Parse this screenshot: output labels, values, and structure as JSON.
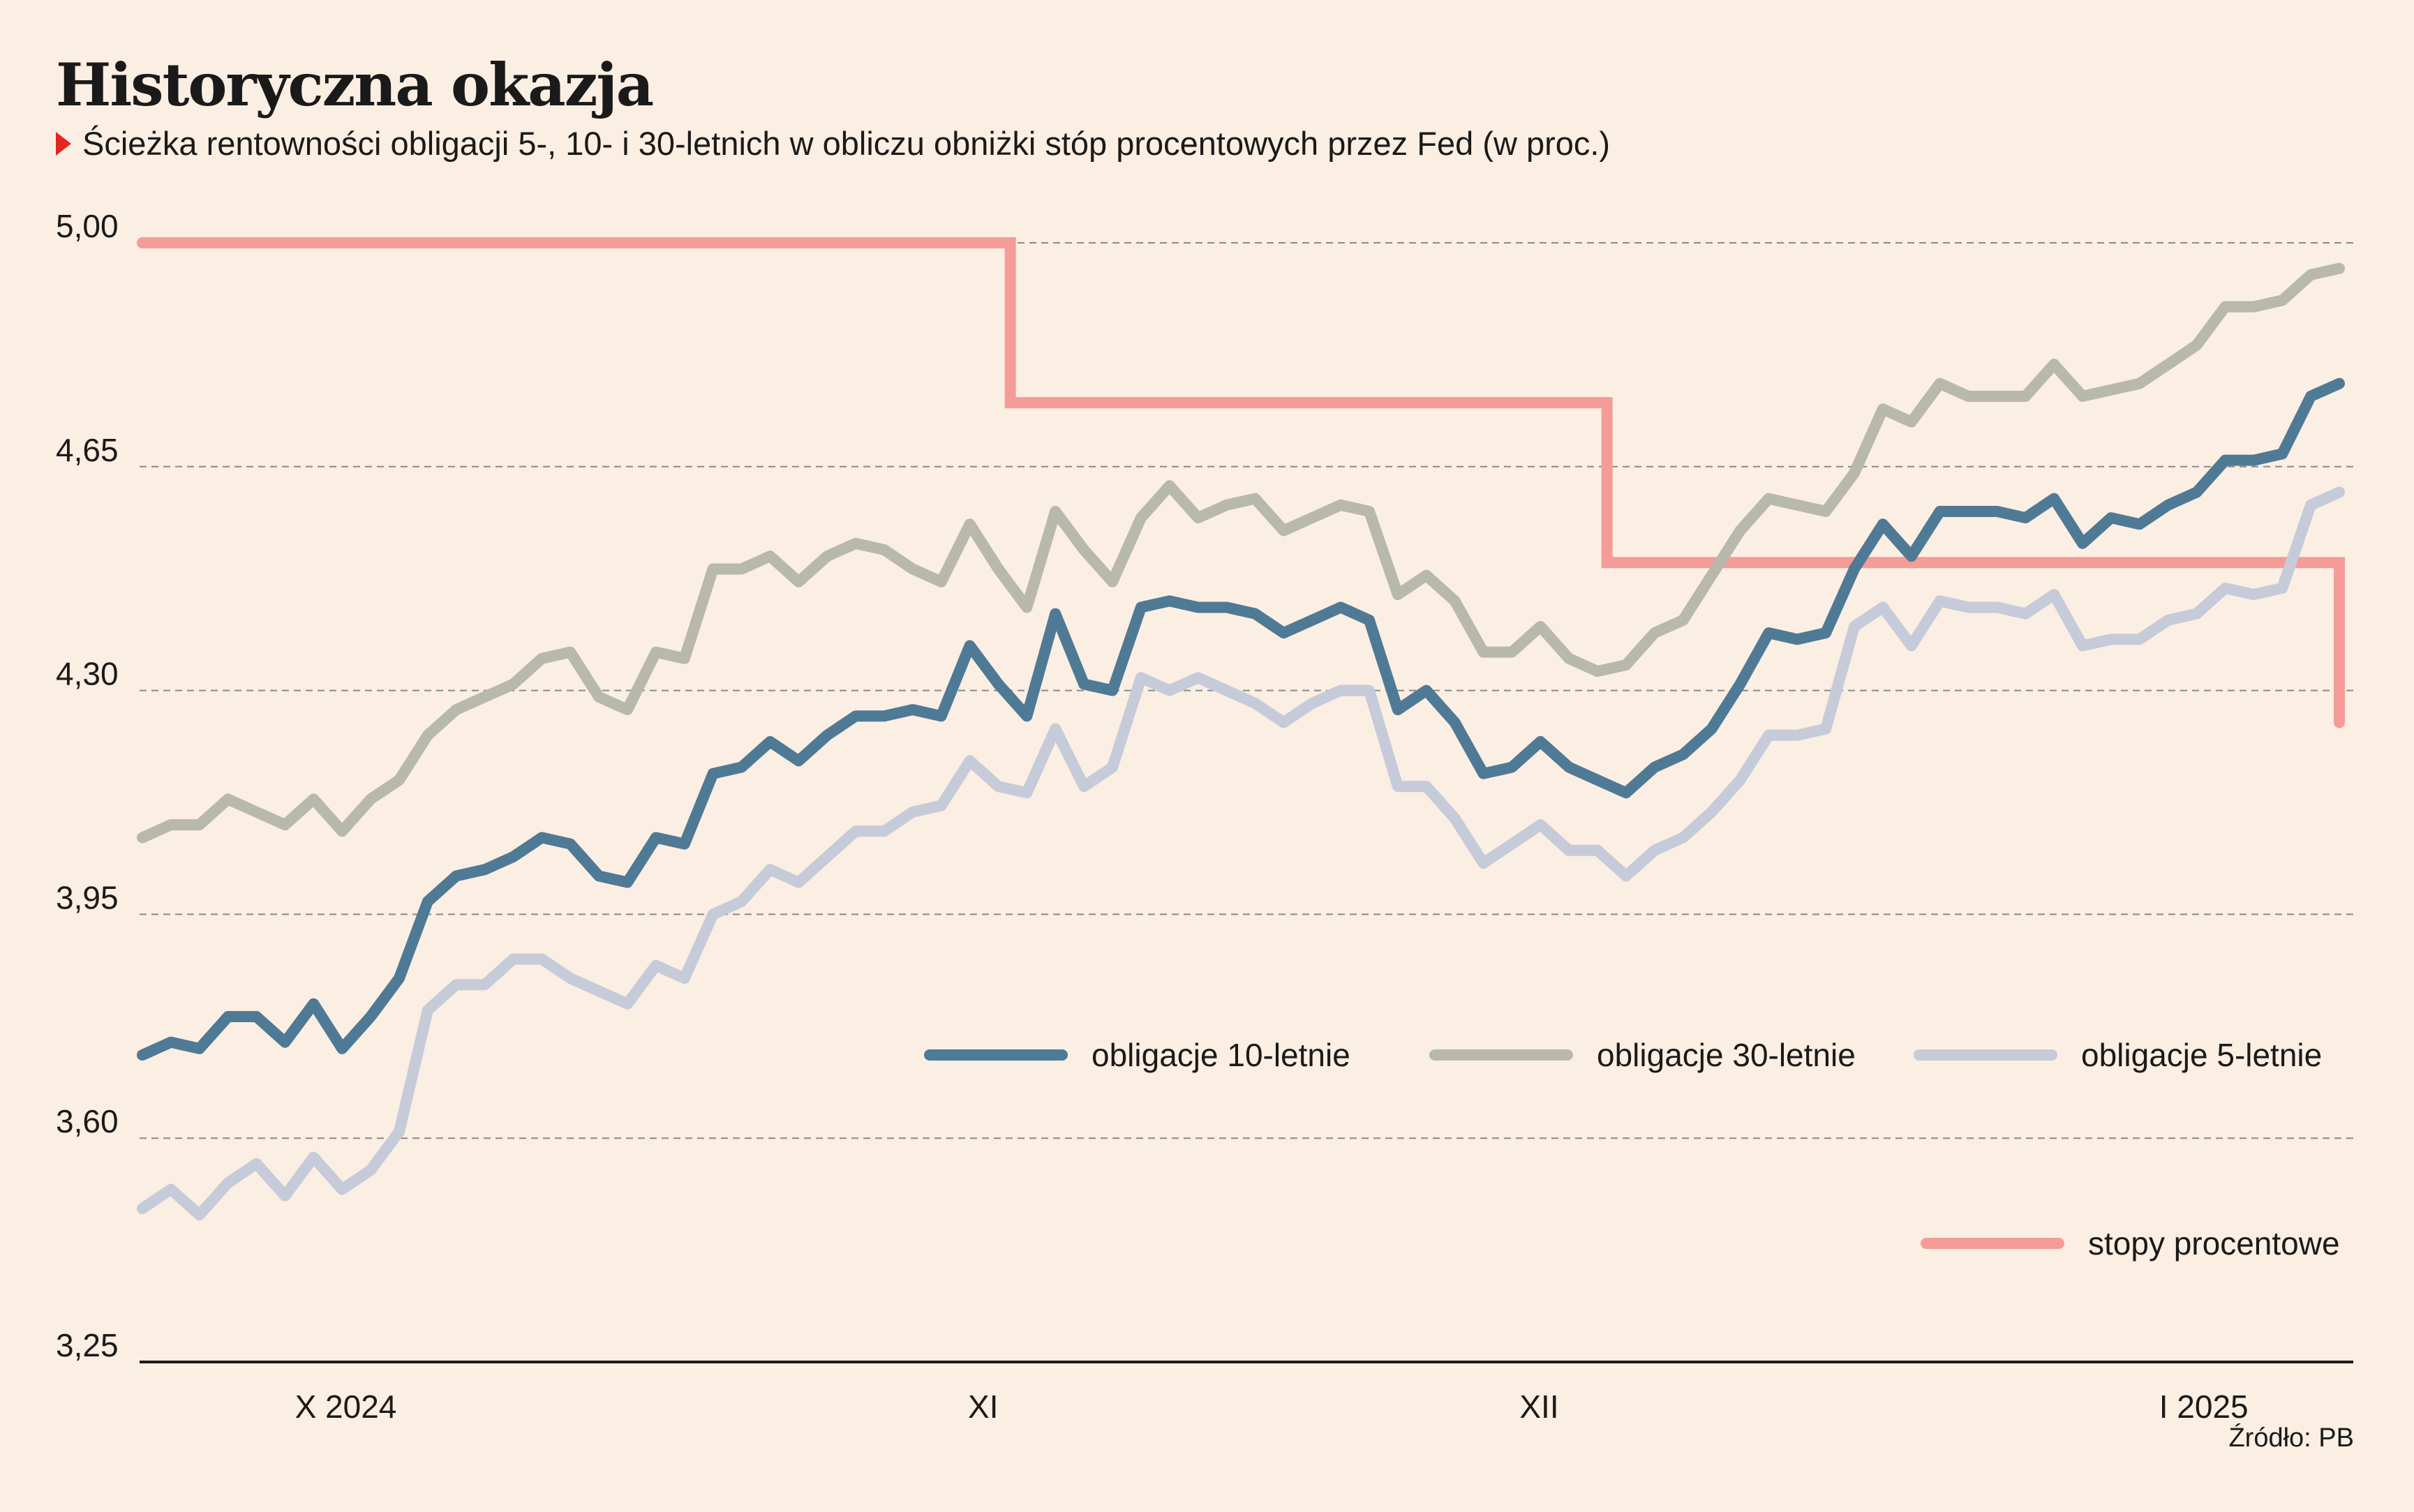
{
  "title": "Historyczna okazja",
  "subtitle": "Ścieżka rentowności obligacji 5-, 10- i 30-letnich w obliczu obniżki stóp procentowych przez Fed (w proc.)",
  "source": "Źródło: PB",
  "colors": {
    "background": "#fbeee2",
    "marker": "#e32620",
    "y10": "#4f7a96",
    "y30": "#b8b8ac",
    "y5": "#c5cbd9",
    "rates": "#f59c98",
    "grid": "#8a8a8a",
    "axis": "#1a1a1a"
  },
  "chart_data": {
    "type": "line",
    "ylim": [
      3.25,
      5.0
    ],
    "yticks": [
      "5,00",
      "4,65",
      "4,30",
      "3,95",
      "3,60",
      "3,25"
    ],
    "ytick_values": [
      5.0,
      4.65,
      4.3,
      3.95,
      3.6,
      3.25
    ],
    "grid": "dashed horizontal",
    "x_count": 82,
    "xticks": [
      {
        "label": "X 2024",
        "x": 7.5
      },
      {
        "label": "XI",
        "x": 31
      },
      {
        "label": "XII",
        "x": 51.5
      },
      {
        "label": "I 2025",
        "x": 76
      }
    ],
    "legend": [
      {
        "key": "y10",
        "label": "obligacje 10-letnie"
      },
      {
        "key": "y30",
        "label": "obligacje 30-letnie"
      },
      {
        "key": "y5",
        "label": "obligacje 5-letnie"
      },
      {
        "key": "rates",
        "label": "stopy procentowe"
      }
    ],
    "series": [
      {
        "key": "y30",
        "name": "obligacje 30-letnie",
        "values": [
          4.07,
          4.09,
          4.09,
          4.13,
          4.11,
          4.09,
          4.13,
          4.08,
          4.13,
          4.16,
          4.23,
          4.27,
          4.29,
          4.31,
          4.35,
          4.36,
          4.29,
          4.27,
          4.36,
          4.35,
          4.49,
          4.49,
          4.51,
          4.47,
          4.51,
          4.53,
          4.52,
          4.49,
          4.47,
          4.56,
          4.49,
          4.43,
          4.58,
          4.52,
          4.47,
          4.57,
          4.62,
          4.57,
          4.59,
          4.6,
          4.55,
          4.57,
          4.59,
          4.58,
          4.45,
          4.48,
          4.44,
          4.36,
          4.36,
          4.4,
          4.35,
          4.33,
          4.34,
          4.39,
          4.41,
          4.48,
          4.55,
          4.6,
          4.59,
          4.58,
          4.64,
          4.74,
          4.72,
          4.78,
          4.76,
          4.76,
          4.76,
          4.81,
          4.76,
          4.77,
          4.78,
          4.81,
          4.84,
          4.9,
          4.9,
          4.91,
          4.95,
          4.96
        ]
      },
      {
        "key": "y10",
        "name": "obligacje 10-letnie",
        "values": [
          3.73,
          3.75,
          3.74,
          3.79,
          3.79,
          3.75,
          3.81,
          3.74,
          3.79,
          3.85,
          3.97,
          4.01,
          4.02,
          4.04,
          4.07,
          4.06,
          4.01,
          4.0,
          4.07,
          4.06,
          4.17,
          4.18,
          4.22,
          4.19,
          4.23,
          4.26,
          4.26,
          4.27,
          4.26,
          4.37,
          4.31,
          4.26,
          4.42,
          4.31,
          4.3,
          4.43,
          4.44,
          4.43,
          4.43,
          4.42,
          4.39,
          4.41,
          4.43,
          4.41,
          4.27,
          4.3,
          4.25,
          4.17,
          4.18,
          4.22,
          4.18,
          4.16,
          4.14,
          4.18,
          4.2,
          4.24,
          4.31,
          4.39,
          4.38,
          4.39,
          4.49,
          4.56,
          4.51,
          4.58,
          4.58,
          4.58,
          4.57,
          4.6,
          4.53,
          4.57,
          4.56,
          4.59,
          4.61,
          4.66,
          4.66,
          4.67,
          4.76,
          4.78
        ]
      },
      {
        "key": "y5",
        "name": "obligacje 5-letnie",
        "values": [
          3.49,
          3.52,
          3.48,
          3.53,
          3.56,
          3.51,
          3.57,
          3.52,
          3.55,
          3.61,
          3.8,
          3.84,
          3.84,
          3.88,
          3.88,
          3.85,
          3.83,
          3.81,
          3.87,
          3.85,
          3.95,
          3.97,
          4.02,
          4.0,
          4.04,
          4.08,
          4.08,
          4.11,
          4.12,
          4.19,
          4.15,
          4.14,
          4.24,
          4.15,
          4.18,
          4.32,
          4.3,
          4.32,
          4.3,
          4.28,
          4.25,
          4.28,
          4.3,
          4.3,
          4.15,
          4.15,
          4.1,
          4.03,
          4.06,
          4.09,
          4.05,
          4.05,
          4.01,
          4.05,
          4.07,
          4.11,
          4.16,
          4.23,
          4.23,
          4.24,
          4.4,
          4.43,
          4.37,
          4.44,
          4.43,
          4.43,
          4.42,
          4.45,
          4.37,
          4.38,
          4.38,
          4.41,
          4.42,
          4.46,
          4.45,
          4.46,
          4.59,
          4.61
        ]
      },
      {
        "key": "rates",
        "name": "stopy procentowe",
        "step": true,
        "values": [
          5.0,
          5.0,
          5.0,
          5.0,
          5.0,
          5.0,
          5.0,
          5.0,
          5.0,
          5.0,
          5.0,
          5.0,
          5.0,
          5.0,
          5.0,
          5.0,
          5.0,
          5.0,
          5.0,
          5.0,
          5.0,
          5.0,
          5.0,
          5.0,
          5.0,
          5.0,
          5.0,
          5.0,
          5.0,
          5.0,
          5.0,
          5.0,
          4.75,
          4.75,
          4.75,
          4.75,
          4.75,
          4.75,
          4.75,
          4.75,
          4.75,
          4.75,
          4.75,
          4.75,
          4.75,
          4.75,
          4.75,
          4.75,
          4.75,
          4.75,
          4.75,
          4.75,
          4.75,
          4.75,
          4.5,
          4.5,
          4.5,
          4.5,
          4.5,
          4.5,
          4.5,
          4.5,
          4.5,
          4.5,
          4.5,
          4.5,
          4.5,
          4.5,
          4.5,
          4.5,
          4.5,
          4.5,
          4.5,
          4.5,
          4.5,
          4.5,
          4.5,
          4.5,
          4.5,
          4.5,
          4.5,
          4.25
        ]
      }
    ]
  }
}
